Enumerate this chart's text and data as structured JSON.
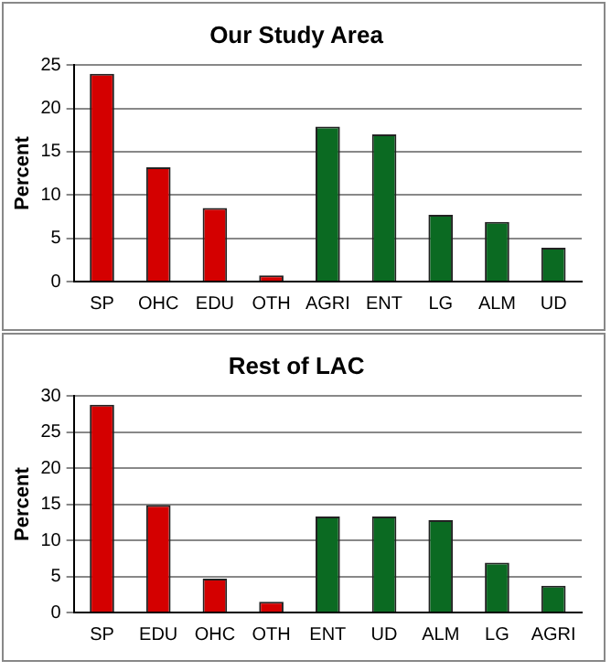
{
  "chart_data": [
    {
      "type": "bar",
      "title": "Our Study Area",
      "ylabel": "Percent",
      "categories": [
        "SP",
        "OHC",
        "EDU",
        "OTH",
        "AGRI",
        "ENT",
        "LG",
        "ALM",
        "UD"
      ],
      "values": [
        24.0,
        13.2,
        8.5,
        0.7,
        17.9,
        17.0,
        7.7,
        6.9,
        3.9
      ],
      "colors": [
        "#d40000",
        "#d40000",
        "#d40000",
        "#d40000",
        "#0b6a22",
        "#0b6a22",
        "#0b6a22",
        "#0b6a22",
        "#0b6a22"
      ],
      "ylim": [
        0,
        25
      ],
      "yticks": [
        0,
        5,
        10,
        15,
        20,
        25
      ],
      "grid": "y",
      "legend": false
    },
    {
      "type": "bar",
      "title": "Rest of LAC",
      "ylabel": "Percent",
      "categories": [
        "SP",
        "EDU",
        "OHC",
        "OTH",
        "ENT",
        "UD",
        "ALM",
        "LG",
        "AGRI"
      ],
      "values": [
        28.8,
        14.9,
        4.7,
        1.5,
        13.3,
        13.3,
        12.8,
        6.9,
        3.7
      ],
      "colors": [
        "#d40000",
        "#d40000",
        "#d40000",
        "#d40000",
        "#0b6a22",
        "#0b6a22",
        "#0b6a22",
        "#0b6a22",
        "#0b6a22"
      ],
      "ylim": [
        0,
        30
      ],
      "yticks": [
        0,
        5,
        10,
        15,
        20,
        25,
        30
      ],
      "grid": "y",
      "legend": false
    }
  ]
}
